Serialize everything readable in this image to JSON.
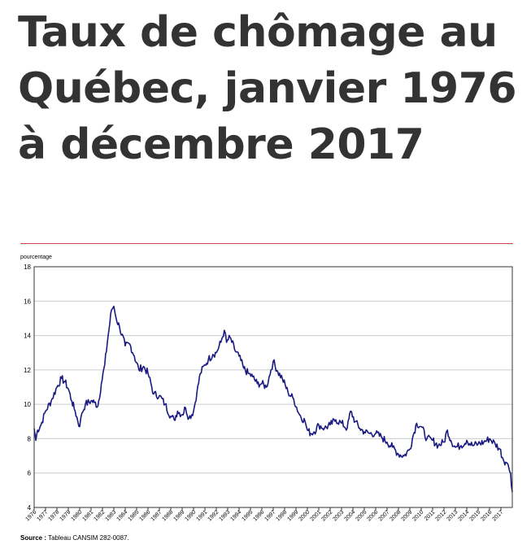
{
  "page": {
    "title": "Taux de chômage au Québec, janvier 1976 à décembre 2017",
    "source_label": "Source :",
    "source_text": "Tableau CANSIM 282-0087."
  },
  "colors": {
    "line": "#1a1a80",
    "rule": "#d6404a",
    "grid": "#cccccc"
  },
  "chart_data": {
    "type": "line",
    "title": "Taux de chômage au Québec, janvier 1976 à décembre 2017",
    "ylabel": "pourcentage",
    "xlabel": "",
    "ylim": [
      4,
      18
    ],
    "yticks": [
      4,
      6,
      8,
      10,
      12,
      14,
      16,
      18
    ],
    "xlim": [
      1976.0,
      2018.0
    ],
    "xticks": [
      "1976",
      "1977",
      "1978",
      "1979",
      "1980",
      "1981",
      "1982",
      "1983",
      "1984",
      "1985",
      "1986",
      "1987",
      "1988",
      "1989",
      "1990",
      "1991",
      "1992",
      "1993",
      "1994",
      "1995",
      "1996",
      "1997",
      "1998",
      "1999",
      "2000",
      "2001",
      "2002",
      "2003",
      "2004",
      "2005",
      "2006",
      "2007",
      "2008",
      "2009",
      "2010",
      "2011",
      "2012",
      "2013",
      "2014",
      "2015",
      "2016",
      "2017"
    ],
    "grid": true,
    "series": [
      {
        "name": "",
        "x": [
          1976.0,
          1976.15,
          1976.3,
          1976.6,
          1977.0,
          1977.5,
          1978.0,
          1978.4,
          1978.7,
          1979.0,
          1979.3,
          1979.6,
          1980.0,
          1980.2,
          1980.5,
          1981.0,
          1981.3,
          1981.6,
          1981.9,
          1982.2,
          1982.5,
          1982.8,
          1983.0,
          1983.2,
          1983.5,
          1984.0,
          1984.4,
          1984.8,
          1985.2,
          1985.6,
          1986.0,
          1986.5,
          1987.0,
          1987.5,
          1988.0,
          1988.3,
          1988.6,
          1989.0,
          1989.3,
          1989.6,
          1990.0,
          1990.3,
          1990.6,
          1991.0,
          1991.3,
          1991.7,
          1992.0,
          1992.4,
          1992.7,
          1992.9,
          1993.2,
          1993.6,
          1994.0,
          1994.4,
          1994.8,
          1995.2,
          1995.6,
          1996.0,
          1996.4,
          1996.8,
          1997.0,
          1997.4,
          1997.8,
          1998.3,
          1998.8,
          1999.3,
          1999.8,
          2000.0,
          2000.3,
          2000.6,
          2001.0,
          2001.5,
          2002.0,
          2002.5,
          2003.0,
          2003.5,
          2003.8,
          2004.2,
          2004.6,
          2005.0,
          2005.5,
          2006.0,
          2006.5,
          2007.0,
          2007.5,
          2008.0,
          2008.5,
          2009.0,
          2009.3,
          2009.6,
          2010.0,
          2010.5,
          2011.0,
          2011.5,
          2012.0,
          2012.3,
          2012.6,
          2013.0,
          2013.5,
          2014.0,
          2014.5,
          2015.0,
          2015.5,
          2016.0,
          2016.5,
          2016.9,
          2017.2,
          2017.5,
          2017.7,
          2017.85,
          2018.0
        ],
        "values": [
          8.6,
          7.9,
          8.5,
          8.8,
          9.6,
          10.2,
          11.0,
          11.5,
          11.3,
          10.9,
          10.2,
          9.6,
          8.7,
          9.5,
          10.0,
          10.2,
          10.1,
          9.9,
          11.2,
          12.3,
          14.0,
          15.5,
          15.7,
          15.0,
          14.5,
          13.4,
          13.5,
          12.8,
          12.0,
          12.2,
          11.8,
          10.6,
          10.5,
          10.0,
          9.3,
          9.1,
          9.6,
          9.4,
          9.8,
          9.2,
          9.6,
          10.7,
          11.8,
          12.3,
          12.6,
          12.9,
          13.0,
          13.6,
          14.3,
          13.6,
          13.9,
          13.2,
          12.8,
          12.1,
          11.8,
          11.6,
          11.2,
          11.2,
          11.0,
          12.0,
          12.5,
          11.9,
          11.5,
          10.7,
          10.3,
          9.4,
          9.0,
          8.5,
          8.3,
          8.4,
          8.8,
          8.6,
          8.8,
          9.1,
          8.9,
          8.6,
          9.6,
          9.0,
          8.6,
          8.4,
          8.3,
          8.3,
          8.1,
          7.8,
          7.5,
          7.1,
          7.0,
          7.4,
          8.2,
          8.9,
          8.7,
          8.0,
          7.9,
          7.6,
          7.8,
          8.5,
          7.9,
          7.5,
          7.6,
          7.9,
          7.6,
          7.7,
          7.8,
          8.0,
          7.7,
          7.4,
          6.8,
          6.6,
          6.3,
          6.0,
          4.9
        ]
      }
    ]
  }
}
